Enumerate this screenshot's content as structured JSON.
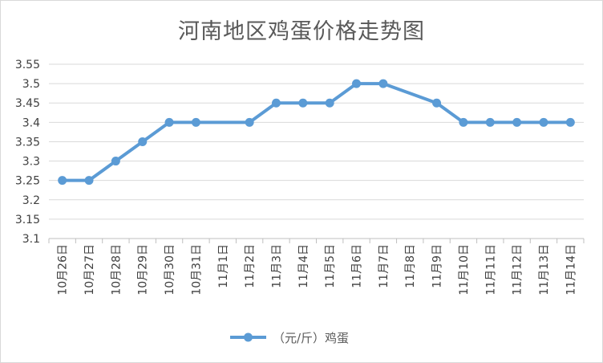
{
  "chart_data": {
    "type": "line",
    "title": "河南地区鸡蛋价格走势图",
    "categories": [
      "10月26日",
      "10月27日",
      "10月28日",
      "10月29日",
      "10月30日",
      "10月31日",
      "11月1日",
      "11月2日",
      "11月3日",
      "11月4日",
      "11月5日",
      "11月6日",
      "11月7日",
      "11月8日",
      "11月9日",
      "11月10日",
      "11月11日",
      "11月12日",
      "11月13日",
      "11月14日"
    ],
    "series": [
      {
        "name": "（元/斤）鸡蛋",
        "values": [
          3.25,
          3.25,
          3.3,
          3.35,
          3.4,
          3.4,
          null,
          3.4,
          3.45,
          3.45,
          3.45,
          3.5,
          3.5,
          null,
          3.45,
          3.4,
          3.4,
          3.4,
          3.4,
          3.4
        ],
        "color": "#5b9bd5"
      }
    ],
    "yticks": [
      "3.1",
      "3.15",
      "3.2",
      "3.25",
      "3.3",
      "3.35",
      "3.4",
      "3.45",
      "3.5",
      "3.55"
    ],
    "ylim": [
      3.1,
      3.55
    ],
    "grid": true,
    "legend": "bottom"
  }
}
